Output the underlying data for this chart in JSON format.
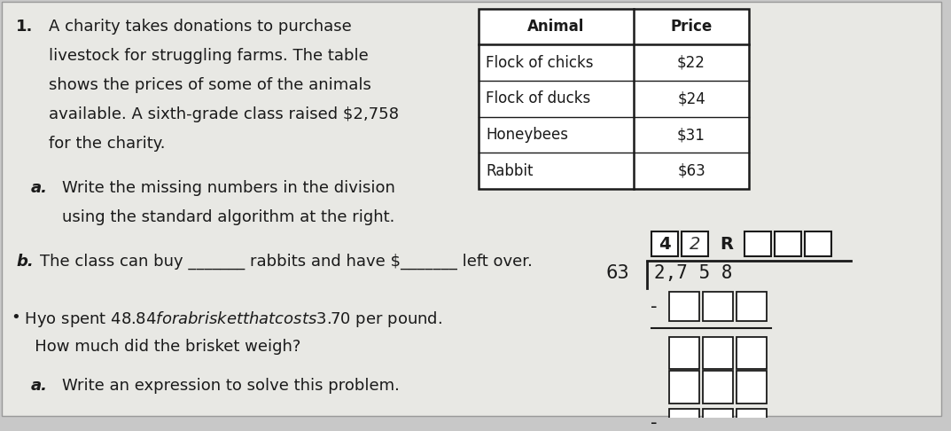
{
  "bg_color": "#c8c8c8",
  "paper_color": "#e8e8e4",
  "text_color": "#1a1a1a",
  "title_num": "1.",
  "para1_line1": "A charity takes donations to purchase",
  "para1_line2": "livestock for struggling farms. The table",
  "para1_line3": "shows the prices of some of the animals",
  "para1_line4": "available. A sixth-grade class raised $2,758",
  "para1_line5": "for the charity.",
  "part_a_label": "a.",
  "part_a_line1": "Write the missing numbers in the division",
  "part_a_line2": "using the standard algorithm at the right.",
  "part_b_label": "b.",
  "part_b_text": "The class can buy _______ rabbits and have $_______ left over.",
  "part2_prefix": "•",
  "part2_line1": " Hyo spent $48.84 for a brisket that costs $3.70 per pound.",
  "part2_line2": "   How much did the brisket weigh?",
  "part2a_label": "a.",
  "part2a_text": "Write an expression to solve this problem.",
  "table_headers": [
    "Animal",
    "Price"
  ],
  "table_rows": [
    [
      "Flock of chicks",
      "$22"
    ],
    [
      "Flock of ducks",
      "$24"
    ],
    [
      "Honeybees",
      "$31"
    ],
    [
      "Rabbit",
      "$63"
    ]
  ],
  "division_dividend": "2,7 5 8",
  "division_divisor": "63",
  "font_size_main": 13,
  "font_size_table": 12,
  "font_size_div": 15
}
